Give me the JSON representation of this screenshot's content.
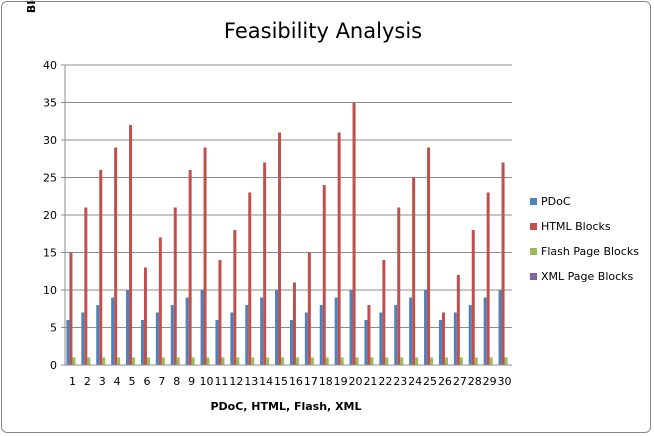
{
  "chart_data": {
    "type": "bar",
    "title": "Feasibility Analysis",
    "xlabel": "PDoC, HTML, Flash, XML",
    "ylabel": "Blocks",
    "ylim": [
      0,
      40
    ],
    "yticks": [
      0,
      5,
      10,
      15,
      20,
      25,
      30,
      35,
      40
    ],
    "grid": true,
    "legend_position": "right",
    "categories": [
      "1",
      "2",
      "3",
      "4",
      "5",
      "6",
      "7",
      "8",
      "9",
      "10",
      "11",
      "12",
      "13",
      "14",
      "15",
      "16",
      "17",
      "18",
      "19",
      "20",
      "21",
      "22",
      "23",
      "24",
      "25",
      "26",
      "27",
      "28",
      "29",
      "30"
    ],
    "series": [
      {
        "name": "PDoC",
        "color": "#4f81bd",
        "values": [
          6,
          7,
          8,
          9,
          10,
          6,
          7,
          8,
          9,
          10,
          6,
          7,
          8,
          9,
          10,
          6,
          7,
          8,
          9,
          10,
          6,
          7,
          8,
          9,
          10,
          6,
          7,
          8,
          9,
          10
        ]
      },
      {
        "name": "HTML Blocks",
        "color": "#c0504d",
        "values": [
          15,
          21,
          26,
          29,
          32,
          13,
          17,
          21,
          26,
          29,
          14,
          18,
          23,
          27,
          31,
          11,
          15,
          24,
          31,
          35,
          8,
          14,
          21,
          25,
          29,
          7,
          12,
          18,
          23,
          27
        ]
      },
      {
        "name": "Flash Page Blocks",
        "color": "#9bbb59",
        "values": [
          1,
          1,
          1,
          1,
          1,
          1,
          1,
          1,
          1,
          1,
          1,
          1,
          1,
          1,
          1,
          1,
          1,
          1,
          1,
          1,
          1,
          1,
          1,
          1,
          1,
          1,
          1,
          1,
          1,
          1
        ]
      },
      {
        "name": "XML Page Blocks",
        "color": "#8064a2",
        "values": [
          0,
          0,
          0,
          0,
          0,
          0,
          0,
          0,
          0,
          0,
          0,
          0,
          0,
          0,
          0,
          0,
          0,
          0,
          0,
          0,
          0,
          0,
          0,
          0,
          0,
          0,
          0,
          0,
          0,
          0
        ]
      }
    ]
  }
}
